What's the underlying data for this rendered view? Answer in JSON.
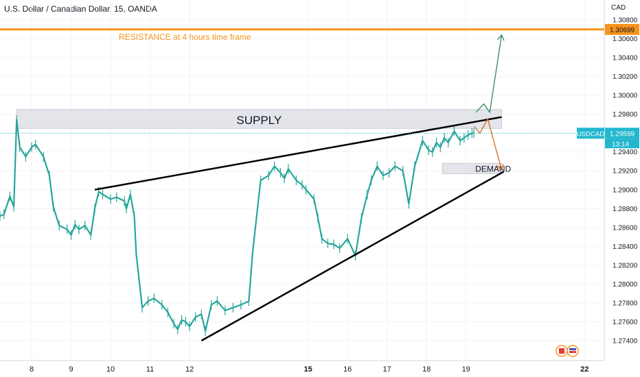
{
  "header": {
    "title": "U.S. Dollar / Canadian Dollar, 15, OANDA"
  },
  "chart_data": {
    "type": "line",
    "currency_label": "CAD",
    "y_ticks": [
      1.274,
      1.276,
      1.278,
      1.28,
      1.282,
      1.284,
      1.286,
      1.288,
      1.29,
      1.292,
      1.294,
      1.296,
      1.298,
      1.3,
      1.302,
      1.304,
      1.306,
      1.308
    ],
    "y_tick_labels": [
      "1.27400",
      "1.27600",
      "1.27800",
      "1.28000",
      "1.28200",
      "1.28400",
      "1.28600",
      "1.28800",
      "1.29000",
      "1.29200",
      "1.29400",
      "1.29600",
      "1.29800",
      "1.30000",
      "1.30200",
      "1.30400",
      "1.30600",
      "1.30800"
    ],
    "ylim": [
      1.2732,
      1.3088
    ],
    "xlim": [
      7.2,
      22.5
    ],
    "x_ticks": [
      8,
      9,
      10,
      11,
      12,
      15,
      16,
      17,
      18,
      19,
      22
    ],
    "x_tick_labels": [
      "8",
      "9",
      "10",
      "11",
      "12",
      "15",
      "16",
      "17",
      "18",
      "19",
      "22"
    ],
    "bold_x_ticks": [
      "15",
      "22"
    ],
    "series": [
      {
        "x": [
          7.2,
          7.3,
          7.45,
          7.55,
          7.62,
          7.7,
          7.85,
          8.0,
          8.1,
          8.3,
          8.45,
          8.55,
          8.7,
          8.9,
          9.0,
          9.1,
          9.2,
          9.35,
          9.5,
          9.6,
          9.7,
          9.8,
          10.0,
          10.15,
          10.35,
          10.4,
          10.5,
          10.6,
          10.65,
          10.8,
          10.95,
          11.1,
          11.3,
          11.45,
          11.6,
          11.7,
          11.8,
          11.9,
          12.0,
          12.15,
          12.3,
          12.4,
          12.55,
          12.7,
          12.9,
          13.1,
          13.3,
          13.5,
          13.6,
          13.8,
          14.0,
          14.15,
          14.3,
          14.4,
          14.5,
          14.7,
          14.85,
          14.95,
          15.15,
          15.25,
          15.35,
          15.5,
          15.65,
          15.8,
          16.0,
          16.2,
          16.35,
          16.5,
          16.6,
          16.75,
          16.9,
          17.05,
          17.2,
          17.4,
          17.55,
          17.7,
          17.9,
          18.05,
          18.15,
          18.25,
          18.35,
          18.45,
          18.55,
          18.7,
          18.85,
          18.95,
          19.05,
          19.15,
          19.2
        ],
        "y": [
          1.2872,
          1.2874,
          1.2893,
          1.2882,
          1.2974,
          1.2945,
          1.2935,
          1.2945,
          1.2948,
          1.2935,
          1.2915,
          1.2882,
          1.2862,
          1.2858,
          1.2852,
          1.2863,
          1.2858,
          1.2862,
          1.2852,
          1.288,
          1.2898,
          1.2895,
          1.289,
          1.2892,
          1.2888,
          1.288,
          1.2895,
          1.2872,
          1.2832,
          1.2775,
          1.2782,
          1.2785,
          1.2778,
          1.277,
          1.2758,
          1.2752,
          1.2762,
          1.276,
          1.2755,
          1.2765,
          1.2768,
          1.275,
          1.2778,
          1.2782,
          1.2772,
          1.2775,
          1.2778,
          1.2782,
          1.2835,
          1.291,
          1.2915,
          1.2925,
          1.2918,
          1.2912,
          1.2922,
          1.291,
          1.2905,
          1.29,
          1.289,
          1.287,
          1.2848,
          1.2843,
          1.2842,
          1.2838,
          1.2848,
          1.283,
          1.287,
          1.2895,
          1.291,
          1.2925,
          1.2915,
          1.2918,
          1.2925,
          1.292,
          1.2885,
          1.2925,
          1.2952,
          1.2942,
          1.294,
          1.295,
          1.2945,
          1.2955,
          1.295,
          1.2962,
          1.2952,
          1.2955,
          1.2958,
          1.296,
          1.296
        ]
      }
    ],
    "price_tags": [
      {
        "label": "1.30699",
        "value": 1.30699,
        "color": "#f7931a"
      },
      {
        "label": "1.29599",
        "value": 1.29599,
        "color": "#22b7ce"
      }
    ],
    "symbol_tag": {
      "label": "USDCAD",
      "timer": "13:14"
    },
    "annotations": {
      "resistance": {
        "text": "RESISTANCE at 4 hours time frame",
        "value": 1.30699,
        "color": "#f7931a"
      },
      "supply": {
        "text": "SUPPLY",
        "y_top": 1.2985,
        "y_bottom": 1.2965,
        "x_start": 7.62,
        "x_end": 19.9
      },
      "demand": {
        "text": "DEMAND",
        "y_top": 1.2928,
        "y_bottom": 1.2917,
        "x_start": 18.4,
        "x_end": 19.9
      },
      "upper_trendline": {
        "x": [
          9.6,
          19.9
        ],
        "y": [
          1.29,
          1.2977
        ]
      },
      "lower_trendline": {
        "x": [
          12.3,
          19.95
        ],
        "y": [
          1.274,
          1.2919
        ]
      },
      "bull_arrow": {
        "x": [
          19.25,
          19.45,
          19.6,
          19.9
        ],
        "y": [
          1.2982,
          1.2991,
          1.2982,
          1.3064
        ],
        "color": "#2e8b57"
      },
      "bear_arrow": {
        "x": [
          19.2,
          19.35,
          19.55,
          19.9
        ],
        "y": [
          1.2967,
          1.296,
          1.2975,
          1.2921
        ],
        "color": "#d2691e"
      }
    },
    "colors": {
      "candles": "#26a69a",
      "axis_text": "#131722",
      "grid": "#f0f3fa",
      "trendline": "#000000",
      "zone_fill": "#e3e5ea",
      "zone_border": "#c9ccd3"
    }
  }
}
